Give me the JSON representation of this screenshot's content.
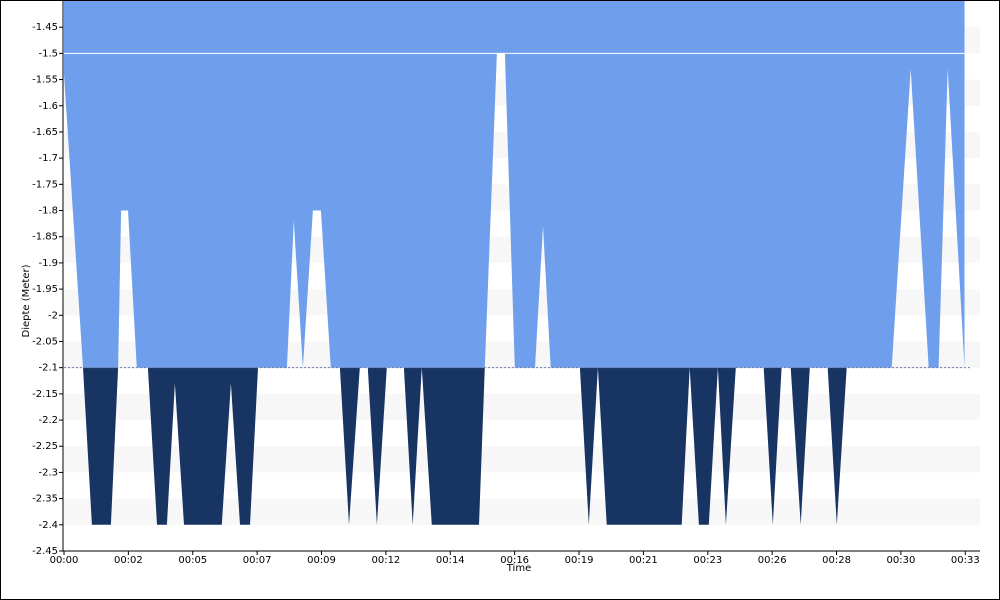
{
  "chart_data": {
    "type": "threshold-area",
    "x_label": "Time",
    "y_label": "Diepte (Meter)",
    "xlim": [
      0,
      33.2
    ],
    "ylim": [
      -2.45,
      -1.4
    ],
    "xticks": [
      {
        "value": 0,
        "label": "00:00"
      },
      {
        "value": 2.333,
        "label": "00:02"
      },
      {
        "value": 4.667,
        "label": "00:05"
      },
      {
        "value": 7,
        "label": "00:07"
      },
      {
        "value": 9.333,
        "label": "00:09"
      },
      {
        "value": 11.667,
        "label": "00:12"
      },
      {
        "value": 14,
        "label": "00:14"
      },
      {
        "value": 16.333,
        "label": "00:16"
      },
      {
        "value": 18.667,
        "label": "00:19"
      },
      {
        "value": 21,
        "label": "00:21"
      },
      {
        "value": 23.333,
        "label": "00:23"
      },
      {
        "value": 25.667,
        "label": "00:26"
      },
      {
        "value": 28,
        "label": "00:28"
      },
      {
        "value": 30.333,
        "label": "00:30"
      },
      {
        "value": 32.667,
        "label": "00:33"
      }
    ],
    "yticks": [
      -1.45,
      -1.5,
      -1.55,
      -1.6,
      -1.65,
      -1.7,
      -1.75,
      -1.8,
      -1.85,
      -1.9,
      -1.95,
      -2,
      -2.05,
      -2.1,
      -2.15,
      -2.2,
      -2.25,
      -2.3,
      -2.35,
      -2.4,
      -2.45
    ],
    "bands": true,
    "threshold": -2.1,
    "reference_line": -1.5,
    "color_above": "#6f9fec",
    "color_below": "#183462",
    "x": [
      0,
      0.69,
      1.01,
      1.7,
      1.96,
      2.07,
      2.32,
      2.64,
      3.04,
      3.37,
      3.73,
      4.02,
      4.35,
      5.72,
      6.05,
      6.38,
      6.74,
      7.03,
      8.08,
      8.33,
      8.66,
      9.02,
      9.31,
      9.67,
      10.0,
      10.33,
      10.72,
      11.01,
      11.34,
      11.7,
      12.32,
      12.64,
      12.97,
      13.33,
      15.04,
      15.25,
      15.69,
      15.98,
      16.34,
      17.07,
      17.36,
      17.64,
      18.7,
      19.02,
      19.35,
      19.67,
      22.39,
      22.68,
      23.01,
      23.37,
      23.7,
      23.99,
      24.35,
      25.36,
      25.69,
      26.01,
      26.34,
      26.7,
      27.03,
      27.68,
      28.01,
      28.37,
      30.0,
      30.69,
      31.34,
      31.7,
      32.03,
      32.64
    ],
    "values": [
      -1.54,
      -2.1,
      -2.4,
      -2.4,
      -2.1,
      -1.8,
      -1.8,
      -2.1,
      -2.1,
      -2.4,
      -2.4,
      -2.13,
      -2.4,
      -2.4,
      -2.13,
      -2.4,
      -2.4,
      -2.1,
      -2.1,
      -1.82,
      -2.1,
      -1.8,
      -1.8,
      -2.1,
      -2.1,
      -2.4,
      -2.1,
      -2.1,
      -2.4,
      -2.1,
      -2.1,
      -2.4,
      -2.1,
      -2.4,
      -2.4,
      -2.1,
      -1.5,
      -1.5,
      -2.1,
      -2.1,
      -1.83,
      -2.1,
      -2.1,
      -2.4,
      -2.1,
      -2.4,
      -2.4,
      -2.1,
      -2.4,
      -2.4,
      -2.1,
      -2.4,
      -2.1,
      -2.1,
      -2.4,
      -2.1,
      -2.1,
      -2.4,
      -2.1,
      -2.1,
      -2.4,
      -2.1,
      -2.1,
      -1.53,
      -2.1,
      -2.1,
      -1.53,
      -2.1
    ]
  }
}
